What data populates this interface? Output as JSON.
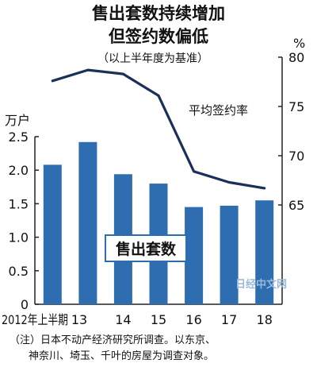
{
  "title_line1": "售出套数持续增加",
  "title_line2": "但签约数偏低",
  "subtitle": "（以上半年度为基准）",
  "note_line1": "（注）日本不动产经济研究所调查。以东京、",
  "note_line2": "神奈川、埼玉、千叶的房屋为调查对象。",
  "watermark": "日经中文网",
  "colors": {
    "bar": "#2e6db0",
    "line": "#1a2f5a",
    "axis": "#222222",
    "bar_label_bg": "#ffffff",
    "bar_label_border": "#2e6db0"
  },
  "chart_data": {
    "type": "bar",
    "categories": [
      "2012年上半期",
      "13",
      "14",
      "15",
      "16",
      "17",
      "18"
    ],
    "left_axis": {
      "unit": "万户",
      "range": [
        0,
        2.5
      ],
      "ticks": [
        "0",
        "0.5",
        "1.0",
        "1.5",
        "2.0",
        "2.5"
      ],
      "tick_values": [
        0,
        0.5,
        1.0,
        1.5,
        2.0,
        2.5
      ]
    },
    "right_axis": {
      "unit": "%",
      "range": [
        65,
        80
      ],
      "ticks": [
        "65",
        "70",
        "75",
        "80"
      ],
      "tick_values": [
        65,
        70,
        75,
        80
      ]
    },
    "series": [
      {
        "name": "售出套数",
        "type": "bar",
        "axis": "left",
        "values": [
          2.08,
          2.42,
          1.94,
          1.8,
          1.45,
          1.47,
          1.55
        ]
      },
      {
        "name": "平均签约率",
        "type": "line",
        "axis": "right",
        "values": [
          77.6,
          78.7,
          78.3,
          76.1,
          68.4,
          67.3,
          66.7
        ]
      }
    ],
    "grid": false,
    "legend": "inline labels"
  }
}
